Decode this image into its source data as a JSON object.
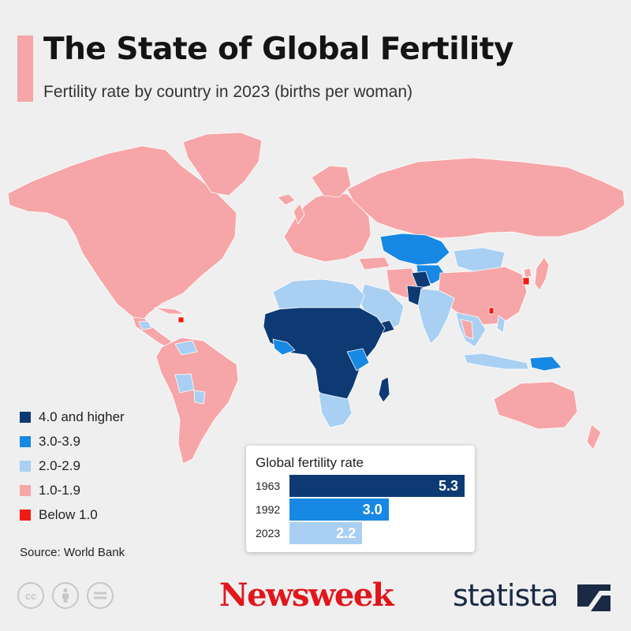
{
  "header": {
    "title": "The State of Global Fertility",
    "subtitle": "Fertility rate by country in 2023 (births per woman)"
  },
  "colors": {
    "accent": "#f6a6a8",
    "cat_4_plus": "#0d3a73",
    "cat_3_39": "#1788e3",
    "cat_2_29": "#a9d0f2",
    "cat_1_19": "#f6a6a8",
    "cat_below_1": "#f21b14",
    "ocean": "#efefef"
  },
  "legend": {
    "items": [
      {
        "label": "4.0 and higher",
        "color": "#0d3a73"
      },
      {
        "label": "3.0-3.9",
        "color": "#1788e3"
      },
      {
        "label": "2.0-2.9",
        "color": "#a9d0f2"
      },
      {
        "label": "1.0-1.9",
        "color": "#f6a6a8"
      },
      {
        "label": "Below 1.0",
        "color": "#f21b14"
      }
    ]
  },
  "inset": {
    "title": "Global fertility rate",
    "scale_max": 5.3,
    "bars": [
      {
        "year": "1963",
        "value": 5.3,
        "label": "5.3",
        "color": "#0d3a73"
      },
      {
        "year": "1992",
        "value": 3.0,
        "label": "3.0",
        "color": "#1788e3"
      },
      {
        "year": "2023",
        "value": 2.2,
        "label": "2.2",
        "color": "#a9d0f2"
      }
    ]
  },
  "footer": {
    "source": "Source: World Bank",
    "license_icons": [
      "cc-icon",
      "attribution-icon",
      "no-derivatives-icon"
    ],
    "cc_text": "cc",
    "publisher": "Newsweek",
    "brand": "statista"
  }
}
